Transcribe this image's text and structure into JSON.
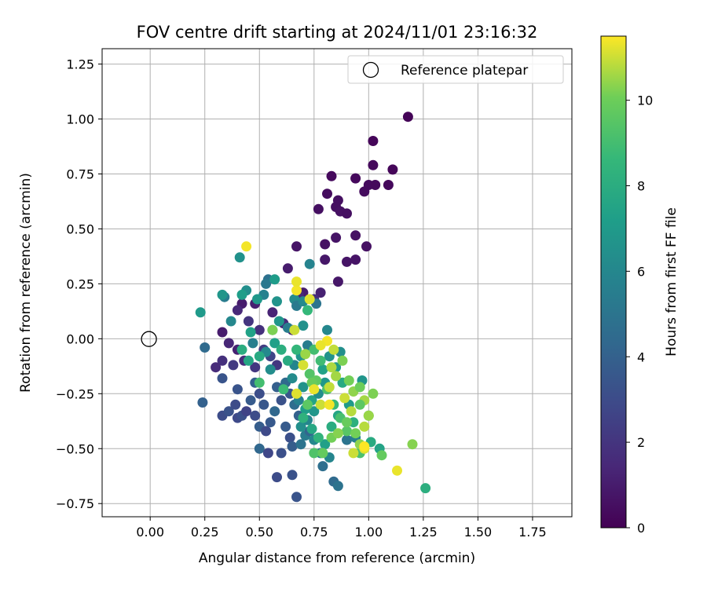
{
  "chart_data": {
    "type": "scatter",
    "title": "FOV centre drift starting at 2024/11/01 23:16:32",
    "xlabel": "Angular distance from reference (arcmin)",
    "ylabel": "Rotation from reference (arcmin)",
    "xlim": [
      -0.22,
      1.93
    ],
    "ylim": [
      -0.81,
      1.32
    ],
    "x_ticks": [
      0.0,
      0.25,
      0.5,
      0.75,
      1.0,
      1.25,
      1.5,
      1.75
    ],
    "x_tick_labels": [
      "0.00",
      "0.25",
      "0.50",
      "0.75",
      "1.00",
      "1.25",
      "1.50",
      "1.75"
    ],
    "y_ticks": [
      -0.75,
      -0.5,
      -0.25,
      0.0,
      0.25,
      0.5,
      0.75,
      1.0,
      1.25
    ],
    "y_tick_labels": [
      "−0.75",
      "−0.50",
      "−0.25",
      "0.00",
      "0.25",
      "0.50",
      "0.75",
      "1.00",
      "1.25"
    ],
    "grid": true,
    "legend": {
      "placement": "top-right",
      "entries": [
        "Reference platepar"
      ]
    },
    "reference_point": {
      "x": 0.0,
      "y": 0.0,
      "label": "Reference platepar",
      "marker": "open-circle"
    },
    "colormap": "viridis",
    "colorbar": {
      "label": "Hours from first FF file",
      "min": 0,
      "max": 11.5,
      "ticks": [
        0,
        2,
        4,
        6,
        8,
        10
      ],
      "tick_labels": [
        "0",
        "2",
        "4",
        "6",
        "8",
        "10"
      ]
    },
    "points": [
      {
        "x": 1.18,
        "y": 1.01,
        "c": 0.1
      },
      {
        "x": 1.02,
        "y": 0.9,
        "c": 0.2
      },
      {
        "x": 1.11,
        "y": 0.77,
        "c": 0.2
      },
      {
        "x": 1.02,
        "y": 0.79,
        "c": 0.3
      },
      {
        "x": 0.83,
        "y": 0.74,
        "c": 0.3
      },
      {
        "x": 0.94,
        "y": 0.73,
        "c": 0.3
      },
      {
        "x": 1.0,
        "y": 0.7,
        "c": 0.4
      },
      {
        "x": 1.03,
        "y": 0.7,
        "c": 0.3
      },
      {
        "x": 0.98,
        "y": 0.67,
        "c": 0.4
      },
      {
        "x": 1.09,
        "y": 0.7,
        "c": 0.3
      },
      {
        "x": 0.81,
        "y": 0.66,
        "c": 0.4
      },
      {
        "x": 0.86,
        "y": 0.63,
        "c": 0.5
      },
      {
        "x": 0.85,
        "y": 0.6,
        "c": 0.5
      },
      {
        "x": 0.77,
        "y": 0.59,
        "c": 0.5
      },
      {
        "x": 0.87,
        "y": 0.58,
        "c": 0.6
      },
      {
        "x": 0.9,
        "y": 0.57,
        "c": 0.5
      },
      {
        "x": 0.94,
        "y": 0.47,
        "c": 0.6
      },
      {
        "x": 0.85,
        "y": 0.46,
        "c": 0.7
      },
      {
        "x": 0.8,
        "y": 0.43,
        "c": 0.6
      },
      {
        "x": 0.67,
        "y": 0.42,
        "c": 0.7
      },
      {
        "x": 0.99,
        "y": 0.42,
        "c": 0.6
      },
      {
        "x": 0.63,
        "y": 0.32,
        "c": 1.0
      },
      {
        "x": 0.8,
        "y": 0.36,
        "c": 0.8
      },
      {
        "x": 0.94,
        "y": 0.36,
        "c": 0.7
      },
      {
        "x": 0.9,
        "y": 0.35,
        "c": 0.7
      },
      {
        "x": 0.86,
        "y": 0.26,
        "c": 0.8
      },
      {
        "x": 0.7,
        "y": 0.21,
        "c": 1.0
      },
      {
        "x": 0.78,
        "y": 0.21,
        "c": 1.2
      },
      {
        "x": 0.68,
        "y": 0.2,
        "c": 1.5
      },
      {
        "x": 0.75,
        "y": 0.18,
        "c": 1.7
      },
      {
        "x": 0.56,
        "y": 0.12,
        "c": 1.3
      },
      {
        "x": 0.61,
        "y": 0.07,
        "c": 1.6
      },
      {
        "x": 0.65,
        "y": 0.04,
        "c": 1.2
      },
      {
        "x": 0.48,
        "y": 0.16,
        "c": 1.1
      },
      {
        "x": 0.42,
        "y": 0.16,
        "c": 1.0
      },
      {
        "x": 0.4,
        "y": 0.13,
        "c": 1.5
      },
      {
        "x": 0.45,
        "y": 0.08,
        "c": 2.0
      },
      {
        "x": 0.5,
        "y": 0.04,
        "c": 1.8
      },
      {
        "x": 0.33,
        "y": 0.03,
        "c": 1.0
      },
      {
        "x": 0.36,
        "y": -0.02,
        "c": 1.4
      },
      {
        "x": 0.4,
        "y": -0.05,
        "c": 1.2
      },
      {
        "x": 0.33,
        "y": -0.1,
        "c": 1.8
      },
      {
        "x": 0.3,
        "y": -0.13,
        "c": 1.6
      },
      {
        "x": 0.33,
        "y": -0.18,
        "c": 3.4
      },
      {
        "x": 0.38,
        "y": -0.12,
        "c": 2.2
      },
      {
        "x": 0.43,
        "y": -0.1,
        "c": 1.6
      },
      {
        "x": 0.48,
        "y": -0.13,
        "c": 2.1
      },
      {
        "x": 0.52,
        "y": -0.05,
        "c": 2.3
      },
      {
        "x": 0.55,
        "y": -0.08,
        "c": 2.7
      },
      {
        "x": 0.58,
        "y": -0.12,
        "c": 2.1
      },
      {
        "x": 0.25,
        "y": -0.04,
        "c": 4.5
      },
      {
        "x": 0.24,
        "y": -0.29,
        "c": 4.0
      },
      {
        "x": 0.33,
        "y": -0.35,
        "c": 3.0
      },
      {
        "x": 0.36,
        "y": -0.33,
        "c": 3.3
      },
      {
        "x": 0.39,
        "y": -0.3,
        "c": 3.0
      },
      {
        "x": 0.4,
        "y": -0.23,
        "c": 3.4
      },
      {
        "x": 0.4,
        "y": -0.36,
        "c": 2.9
      },
      {
        "x": 0.42,
        "y": -0.35,
        "c": 3.2
      },
      {
        "x": 0.44,
        "y": -0.33,
        "c": 2.6
      },
      {
        "x": 0.46,
        "y": -0.28,
        "c": 3.7
      },
      {
        "x": 0.48,
        "y": -0.2,
        "c": 4.0
      },
      {
        "x": 0.5,
        "y": -0.25,
        "c": 3.1
      },
      {
        "x": 0.52,
        "y": -0.3,
        "c": 3.5
      },
      {
        "x": 0.48,
        "y": -0.35,
        "c": 3.0
      },
      {
        "x": 0.5,
        "y": -0.4,
        "c": 3.8
      },
      {
        "x": 0.53,
        "y": -0.42,
        "c": 2.9
      },
      {
        "x": 0.55,
        "y": -0.38,
        "c": 3.6
      },
      {
        "x": 0.57,
        "y": -0.33,
        "c": 4.3
      },
      {
        "x": 0.6,
        "y": -0.28,
        "c": 3.3
      },
      {
        "x": 0.58,
        "y": -0.22,
        "c": 3.9
      },
      {
        "x": 0.62,
        "y": -0.2,
        "c": 4.4
      },
      {
        "x": 0.64,
        "y": -0.25,
        "c": 3.5
      },
      {
        "x": 0.66,
        "y": -0.3,
        "c": 4.6
      },
      {
        "x": 0.68,
        "y": -0.35,
        "c": 4.0
      },
      {
        "x": 0.62,
        "y": -0.4,
        "c": 3.7
      },
      {
        "x": 0.64,
        "y": -0.45,
        "c": 3.2
      },
      {
        "x": 0.5,
        "y": -0.5,
        "c": 4.3
      },
      {
        "x": 0.54,
        "y": -0.52,
        "c": 2.8
      },
      {
        "x": 0.6,
        "y": -0.52,
        "c": 3.2
      },
      {
        "x": 0.65,
        "y": -0.49,
        "c": 3.8
      },
      {
        "x": 0.58,
        "y": -0.63,
        "c": 3.0
      },
      {
        "x": 0.65,
        "y": -0.62,
        "c": 3.3
      },
      {
        "x": 0.67,
        "y": -0.72,
        "c": 3.4
      },
      {
        "x": 0.69,
        "y": -0.48,
        "c": 4.9
      },
      {
        "x": 0.71,
        "y": -0.44,
        "c": 5.4
      },
      {
        "x": 0.73,
        "y": -0.42,
        "c": 4.2
      },
      {
        "x": 0.75,
        "y": -0.46,
        "c": 6.0
      },
      {
        "x": 0.78,
        "y": -0.52,
        "c": 5.3
      },
      {
        "x": 0.79,
        "y": -0.58,
        "c": 4.7
      },
      {
        "x": 0.84,
        "y": -0.65,
        "c": 4.5
      },
      {
        "x": 0.86,
        "y": -0.67,
        "c": 4.9
      },
      {
        "x": 0.82,
        "y": -0.54,
        "c": 5.9
      },
      {
        "x": 0.9,
        "y": -0.46,
        "c": 5.0
      },
      {
        "x": 0.94,
        "y": -0.45,
        "c": 5.6
      },
      {
        "x": 0.97,
        "y": -0.19,
        "c": 6.7
      },
      {
        "x": 0.23,
        "y": 0.12,
        "c": 7.0
      },
      {
        "x": 0.41,
        "y": 0.37,
        "c": 6.5
      },
      {
        "x": 0.54,
        "y": 0.27,
        "c": 4.8
      },
      {
        "x": 0.53,
        "y": 0.25,
        "c": 5.2
      },
      {
        "x": 0.57,
        "y": 0.27,
        "c": 7.1
      },
      {
        "x": 0.58,
        "y": 0.17,
        "c": 6.6
      },
      {
        "x": 0.52,
        "y": 0.2,
        "c": 5.7
      },
      {
        "x": 0.49,
        "y": 0.18,
        "c": 6.9
      },
      {
        "x": 0.44,
        "y": 0.22,
        "c": 6.4
      },
      {
        "x": 0.42,
        "y": 0.2,
        "c": 7.2
      },
      {
        "x": 0.34,
        "y": 0.19,
        "c": 5.4
      },
      {
        "x": 0.33,
        "y": 0.2,
        "c": 6.8
      },
      {
        "x": 0.37,
        "y": 0.08,
        "c": 6.0
      },
      {
        "x": 0.46,
        "y": 0.03,
        "c": 7.4
      },
      {
        "x": 0.47,
        "y": -0.02,
        "c": 5.6
      },
      {
        "x": 0.53,
        "y": -0.06,
        "c": 6.1
      },
      {
        "x": 0.55,
        "y": -0.14,
        "c": 6.3
      },
      {
        "x": 0.57,
        "y": -0.02,
        "c": 7.3
      },
      {
        "x": 0.59,
        "y": 0.08,
        "c": 6.8
      },
      {
        "x": 0.63,
        "y": 0.05,
        "c": 5.5
      },
      {
        "x": 0.66,
        "y": 0.18,
        "c": 6.2
      },
      {
        "x": 0.67,
        "y": 0.15,
        "c": 5.3
      },
      {
        "x": 0.7,
        "y": 0.17,
        "c": 6.1
      },
      {
        "x": 0.73,
        "y": 0.34,
        "c": 5.8
      },
      {
        "x": 0.76,
        "y": 0.16,
        "c": 5.0
      },
      {
        "x": 0.7,
        "y": 0.06,
        "c": 6.5
      },
      {
        "x": 0.72,
        "y": -0.03,
        "c": 5.5
      },
      {
        "x": 0.69,
        "y": -0.08,
        "c": 6.7
      },
      {
        "x": 0.66,
        "y": -0.12,
        "c": 5.9
      },
      {
        "x": 0.65,
        "y": -0.18,
        "c": 6.2
      },
      {
        "x": 0.7,
        "y": -0.22,
        "c": 6.6
      },
      {
        "x": 0.68,
        "y": -0.28,
        "c": 5.7
      },
      {
        "x": 0.71,
        "y": -0.32,
        "c": 7.2
      },
      {
        "x": 0.69,
        "y": -0.4,
        "c": 6.4
      },
      {
        "x": 0.72,
        "y": -0.37,
        "c": 5.9
      },
      {
        "x": 0.75,
        "y": -0.33,
        "c": 6.8
      },
      {
        "x": 0.74,
        "y": -0.28,
        "c": 7.5
      },
      {
        "x": 0.77,
        "y": -0.25,
        "c": 6.3
      },
      {
        "x": 0.8,
        "y": -0.2,
        "c": 6.9
      },
      {
        "x": 0.79,
        "y": -0.14,
        "c": 7.4
      },
      {
        "x": 0.82,
        "y": -0.08,
        "c": 6.6
      },
      {
        "x": 0.81,
        "y": 0.04,
        "c": 6.0
      },
      {
        "x": 0.85,
        "y": -0.13,
        "c": 7.1
      },
      {
        "x": 0.87,
        "y": -0.06,
        "c": 6.4
      },
      {
        "x": 0.88,
        "y": -0.2,
        "c": 7.8
      },
      {
        "x": 0.91,
        "y": -0.3,
        "c": 7.0
      },
      {
        "x": 0.93,
        "y": -0.38,
        "c": 8.2
      },
      {
        "x": 0.86,
        "y": -0.35,
        "c": 7.6
      },
      {
        "x": 0.83,
        "y": -0.4,
        "c": 8.0
      },
      {
        "x": 0.8,
        "y": -0.48,
        "c": 7.3
      },
      {
        "x": 0.77,
        "y": -0.45,
        "c": 8.4
      },
      {
        "x": 0.74,
        "y": -0.41,
        "c": 7.7
      },
      {
        "x": 0.7,
        "y": -0.36,
        "c": 8.3
      },
      {
        "x": 1.0,
        "y": -0.35,
        "c": 8.7
      },
      {
        "x": 1.01,
        "y": -0.47,
        "c": 7.9
      },
      {
        "x": 1.05,
        "y": -0.5,
        "c": 7.5
      },
      {
        "x": 1.26,
        "y": -0.68,
        "c": 8.1
      },
      {
        "x": 0.45,
        "y": -0.1,
        "c": 7.6
      },
      {
        "x": 0.42,
        "y": -0.05,
        "c": 8.0
      },
      {
        "x": 0.5,
        "y": -0.08,
        "c": 7.8
      },
      {
        "x": 0.56,
        "y": 0.04,
        "c": 8.4
      },
      {
        "x": 0.6,
        "y": -0.05,
        "c": 8.1
      },
      {
        "x": 0.63,
        "y": -0.1,
        "c": 7.9
      },
      {
        "x": 0.72,
        "y": 0.13,
        "c": 8.6
      },
      {
        "x": 0.61,
        "y": -0.23,
        "c": 8.8
      },
      {
        "x": 0.67,
        "y": -0.05,
        "c": 8.5
      },
      {
        "x": 0.75,
        "y": -0.05,
        "c": 9.0
      },
      {
        "x": 0.78,
        "y": -0.1,
        "c": 8.9
      },
      {
        "x": 0.81,
        "y": -0.23,
        "c": 9.3
      },
      {
        "x": 0.84,
        "y": -0.3,
        "c": 8.7
      },
      {
        "x": 0.87,
        "y": -0.36,
        "c": 9.1
      },
      {
        "x": 0.9,
        "y": -0.42,
        "c": 9.5
      },
      {
        "x": 0.96,
        "y": -0.52,
        "c": 9.2
      },
      {
        "x": 1.06,
        "y": -0.53,
        "c": 9.8
      },
      {
        "x": 0.73,
        "y": -0.16,
        "c": 9.4
      },
      {
        "x": 0.76,
        "y": -0.19,
        "c": 9.7
      },
      {
        "x": 0.74,
        "y": -0.2,
        "c": 9.9
      },
      {
        "x": 0.72,
        "y": -0.3,
        "c": 9.6
      },
      {
        "x": 0.75,
        "y": -0.52,
        "c": 9.3
      },
      {
        "x": 0.79,
        "y": -0.52,
        "c": 9.8
      },
      {
        "x": 0.83,
        "y": -0.45,
        "c": 10.1
      },
      {
        "x": 0.86,
        "y": -0.43,
        "c": 10.3
      },
      {
        "x": 0.9,
        "y": -0.38,
        "c": 9.9
      },
      {
        "x": 0.93,
        "y": -0.24,
        "c": 10.4
      },
      {
        "x": 0.96,
        "y": -0.22,
        "c": 10.0
      },
      {
        "x": 0.98,
        "y": -0.28,
        "c": 10.6
      },
      {
        "x": 0.96,
        "y": -0.3,
        "c": 9.6
      },
      {
        "x": 1.02,
        "y": -0.25,
        "c": 10.2
      },
      {
        "x": 1.0,
        "y": -0.35,
        "c": 10.5
      },
      {
        "x": 0.98,
        "y": -0.4,
        "c": 10.8
      },
      {
        "x": 0.94,
        "y": -0.43,
        "c": 10.1
      },
      {
        "x": 0.96,
        "y": -0.48,
        "c": 10.4
      },
      {
        "x": 0.98,
        "y": -0.5,
        "c": 11.2
      },
      {
        "x": 1.2,
        "y": -0.48,
        "c": 10.3
      },
      {
        "x": 0.82,
        "y": -0.22,
        "c": 10.9
      },
      {
        "x": 0.85,
        "y": -0.17,
        "c": 10.6
      },
      {
        "x": 0.88,
        "y": -0.1,
        "c": 10.2
      },
      {
        "x": 0.83,
        "y": -0.13,
        "c": 10.7
      },
      {
        "x": 0.91,
        "y": -0.19,
        "c": 10.1
      },
      {
        "x": 0.89,
        "y": -0.27,
        "c": 11.0
      },
      {
        "x": 0.92,
        "y": -0.33,
        "c": 10.8
      },
      {
        "x": 0.93,
        "y": -0.52,
        "c": 11.0
      },
      {
        "x": 1.13,
        "y": -0.6,
        "c": 11.3
      },
      {
        "x": 0.81,
        "y": -0.01,
        "c": 11.4
      },
      {
        "x": 0.84,
        "y": -0.05,
        "c": 10.9
      },
      {
        "x": 0.78,
        "y": -0.03,
        "c": 11.3
      },
      {
        "x": 0.71,
        "y": -0.07,
        "c": 10.5
      },
      {
        "x": 0.7,
        "y": -0.12,
        "c": 11.1
      },
      {
        "x": 0.67,
        "y": -0.25,
        "c": 11.2
      },
      {
        "x": 0.75,
        "y": -0.23,
        "c": 11.3
      },
      {
        "x": 0.78,
        "y": -0.3,
        "c": 11.0
      },
      {
        "x": 0.82,
        "y": -0.3,
        "c": 11.4
      },
      {
        "x": 0.66,
        "y": 0.04,
        "c": 11.0
      },
      {
        "x": 0.73,
        "y": 0.18,
        "c": 11.2
      },
      {
        "x": 0.67,
        "y": 0.22,
        "c": 11.4
      },
      {
        "x": 0.67,
        "y": 0.26,
        "c": 11.3
      },
      {
        "x": 0.44,
        "y": 0.42,
        "c": 11.4
      },
      {
        "x": 0.98,
        "y": -0.49,
        "c": 11.5
      },
      {
        "x": 0.56,
        "y": 0.04,
        "c": 10.2
      },
      {
        "x": 0.5,
        "y": -0.2,
        "c": 9.0
      }
    ]
  }
}
